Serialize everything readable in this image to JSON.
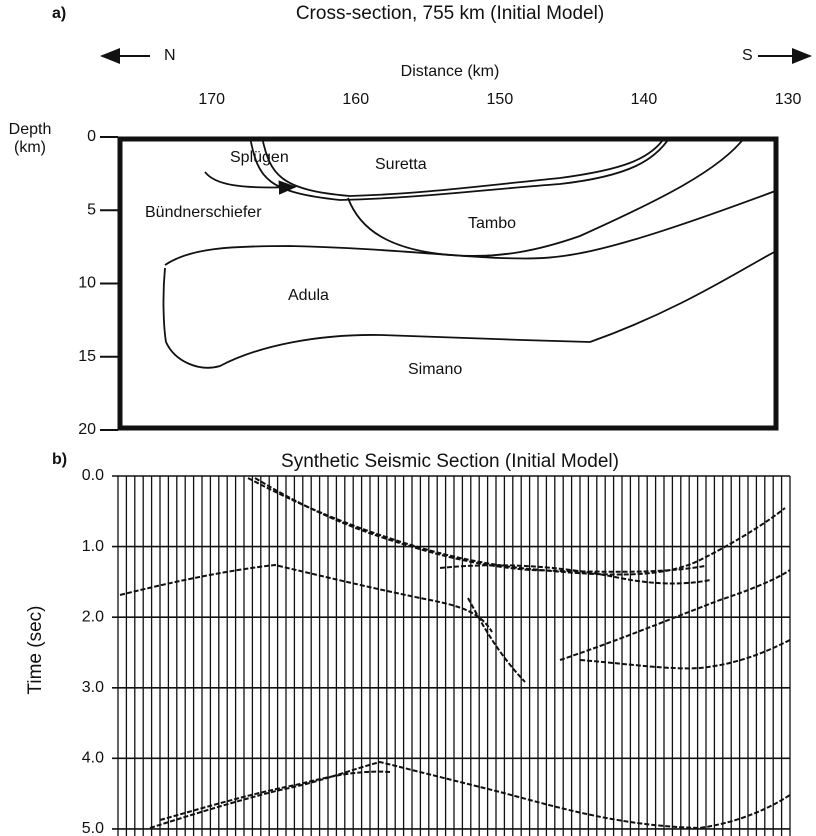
{
  "panel_a": {
    "label": "a)",
    "title": "Cross-section, 755 km (Initial Model)",
    "north": "N",
    "south": "S",
    "xlabel": "Distance (km)",
    "ylabel": [
      "Depth",
      "(km)"
    ],
    "xlim": [
      176.5,
      130.7
    ],
    "xticks": [
      170,
      160,
      150,
      140,
      130
    ],
    "ylim": [
      0,
      20
    ],
    "yticks": [
      0,
      5,
      10,
      15,
      20
    ],
    "units": [
      "Splügen",
      "Suretta",
      "Bündnerschiefer",
      "Tambo",
      "Adula",
      "Simano"
    ]
  },
  "panel_b": {
    "label": "b)",
    "title": "Synthetic Seismic Section (Initial Model)",
    "ylabel": "Time (sec)",
    "ylim": [
      0,
      5.1
    ],
    "yticks": [
      {
        "value": 0,
        "label": "0.0"
      },
      {
        "value": 1,
        "label": "1.0"
      },
      {
        "value": 2,
        "label": "2.0"
      },
      {
        "value": 3,
        "label": "3.0"
      },
      {
        "value": 4,
        "label": "4.0"
      },
      {
        "value": 5,
        "label": "5.0"
      }
    ]
  }
}
